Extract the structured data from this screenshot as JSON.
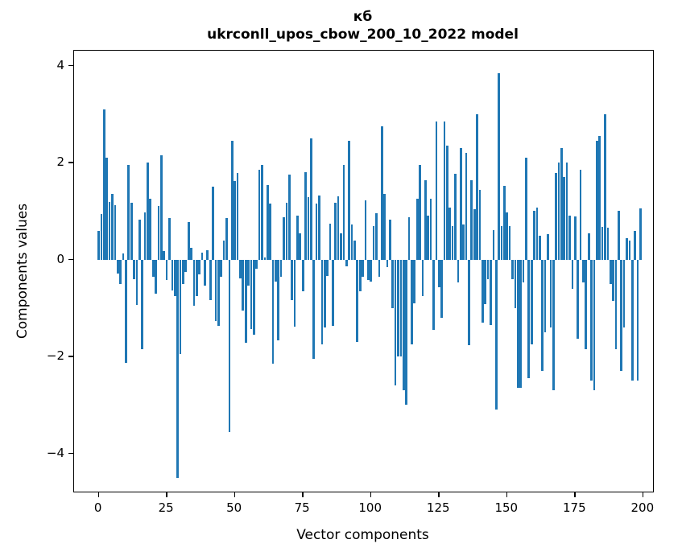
{
  "title_line1": "кб",
  "title_line2": "ukrconll_upos_cbow_200_10_2022 model",
  "xlabel": "Vector components",
  "ylabel": "Components values",
  "chart_data": {
    "type": "bar",
    "title": "кб",
    "subtitle": "ukrconll_upos_cbow_200_10_2022 model",
    "xlabel": "Vector components",
    "ylabel": "Components values",
    "bar_color": "#1f77b4",
    "bar_width": 0.8,
    "grid": false,
    "legend": "none",
    "xlim": [
      -9.05,
      203.6
    ],
    "ylim": [
      -4.785,
      4.31
    ],
    "xticks": [
      0,
      25,
      50,
      75,
      100,
      125,
      150,
      175,
      200
    ],
    "yticks": [
      4,
      2,
      0,
      -2,
      -4
    ],
    "ytick_labels": [
      "4",
      "2",
      "0",
      "−2",
      "−4"
    ],
    "x": "0..199 (vector component index)",
    "values": [
      0.59,
      0.94,
      3.1,
      2.1,
      1.19,
      1.35,
      1.12,
      -0.29,
      -0.51,
      0.12,
      -2.13,
      1.95,
      1.18,
      -0.41,
      -0.94,
      0.83,
      -1.85,
      0.98,
      2.0,
      1.25,
      -0.36,
      -0.7,
      1.1,
      2.15,
      0.17,
      -0.42,
      0.85,
      -0.64,
      -0.75,
      -4.5,
      -1.95,
      -0.5,
      -0.25,
      0.77,
      0.25,
      -0.95,
      -0.75,
      -0.3,
      0.15,
      -0.53,
      0.19,
      -0.83,
      1.5,
      -1.27,
      -1.36,
      -0.36,
      0.39,
      0.86,
      -3.55,
      2.45,
      1.62,
      1.78,
      -0.39,
      -1.05,
      -1.71,
      -0.53,
      -1.44,
      -1.55,
      -0.19,
      1.85,
      1.95,
      0.05,
      1.54,
      1.15,
      -2.15,
      -0.45,
      -1.66,
      -0.36,
      0.87,
      1.17,
      1.75,
      -0.83,
      -1.38,
      0.9,
      0.55,
      -0.66,
      1.81,
      1.29,
      2.5,
      -2.05,
      1.15,
      1.33,
      -1.75,
      -1.4,
      -0.33,
      0.74,
      -1.36,
      1.17,
      1.3,
      0.55,
      1.95,
      -0.14,
      2.45,
      0.72,
      0.4,
      -1.69,
      -0.66,
      -0.36,
      1.23,
      -0.42,
      -0.45,
      0.7,
      0.95,
      -0.36,
      2.75,
      1.36,
      -0.15,
      0.83,
      -1.0,
      -2.6,
      -2.0,
      -2.0,
      -2.7,
      -3.0,
      0.87,
      -1.75,
      -0.9,
      1.26,
      1.95,
      -0.75,
      1.63,
      0.91,
      1.25,
      -1.45,
      2.85,
      -0.57,
      -1.2,
      2.85,
      2.35,
      1.08,
      0.69,
      1.77,
      -0.47,
      2.3,
      0.72,
      2.2,
      -1.77,
      1.63,
      1.04,
      3.0,
      1.44,
      -1.3,
      -0.91,
      -0.4,
      -1.35,
      0.61,
      -3.1,
      3.85,
      0.69,
      1.52,
      0.98,
      0.7,
      -0.4,
      -1.0,
      -2.65,
      -2.65,
      -0.47,
      2.1,
      -2.45,
      -1.75,
      1.0,
      1.08,
      0.5,
      -2.3,
      -1.5,
      0.53,
      -1.4,
      -2.7,
      1.78,
      2.0,
      2.3,
      1.7,
      2.0,
      0.9,
      -0.61,
      0.89,
      -1.63,
      1.85,
      -0.47,
      -1.85,
      0.54,
      -2.5,
      -2.7,
      2.45,
      2.55,
      0.68,
      3.0,
      0.66,
      -0.5,
      -0.85,
      -1.85,
      1.0,
      -2.3,
      -1.4,
      0.45,
      0.39,
      -2.5,
      0.6,
      -2.5,
      1.05
    ]
  }
}
